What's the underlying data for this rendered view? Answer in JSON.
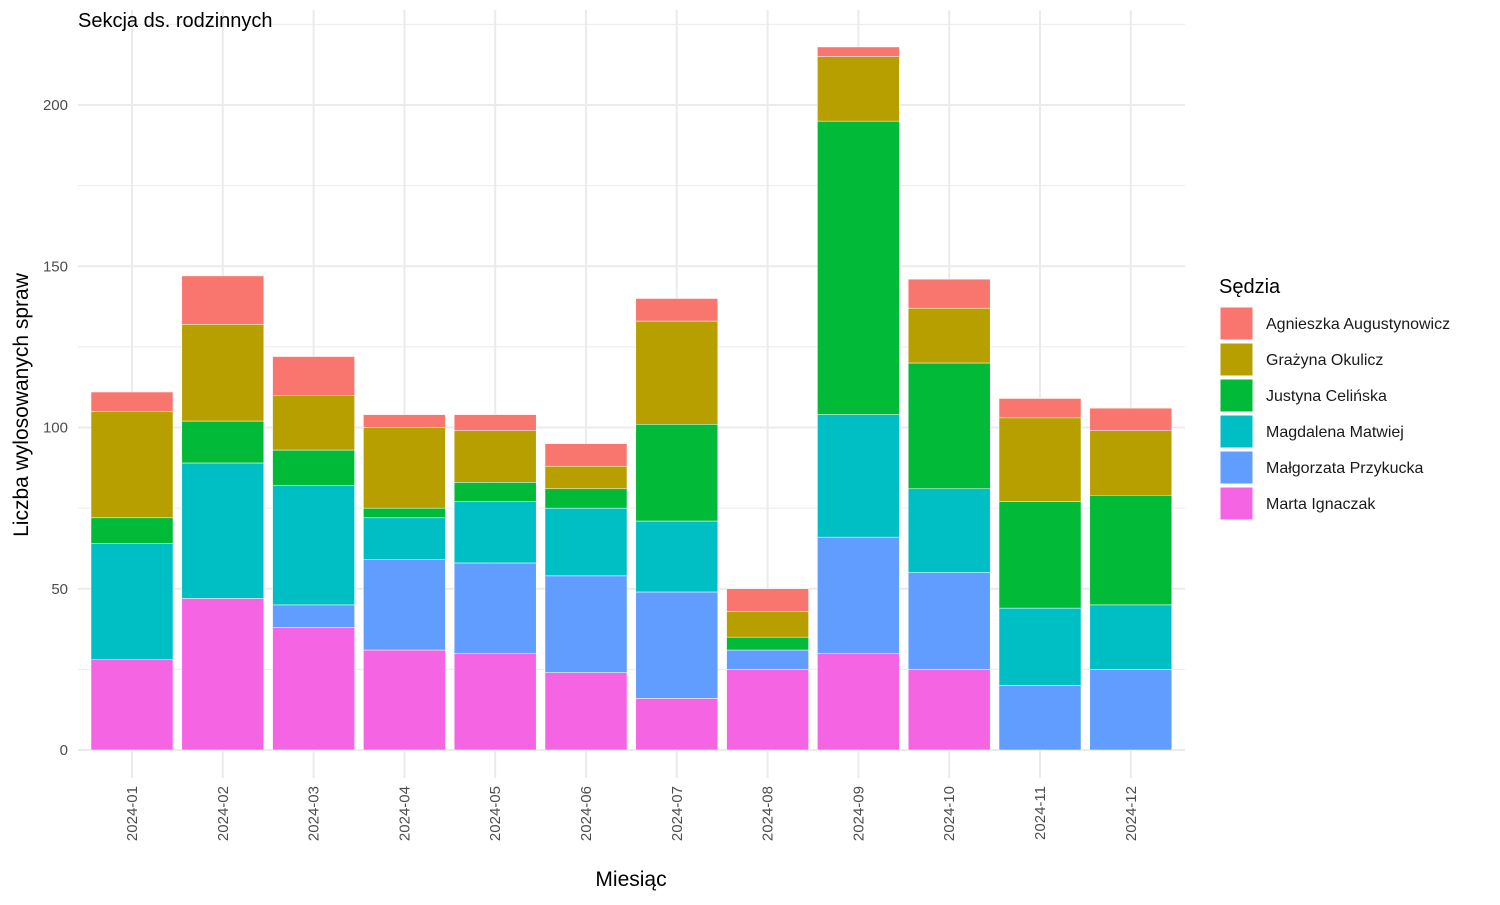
{
  "chart_data": {
    "type": "bar",
    "stacked": true,
    "title": "Sekcja ds. rodzinnych",
    "xlabel": "Miesiąc",
    "ylabel": "Liczba wylosowanych spraw",
    "ylim": [
      0,
      225
    ],
    "y_ticks": [
      0,
      50,
      100,
      150,
      200
    ],
    "grid": true,
    "legend_position": "right",
    "legend_title": "Sędzia",
    "categories": [
      "2024-01",
      "2024-02",
      "2024-03",
      "2024-04",
      "2024-05",
      "2024-06",
      "2024-07",
      "2024-08",
      "2024-09",
      "2024-10",
      "2024-11",
      "2024-12"
    ],
    "series": [
      {
        "name": "Marta Ignaczak",
        "color": "#F564E3",
        "values": [
          28,
          47,
          38,
          31,
          30,
          24,
          16,
          25,
          30,
          25,
          0,
          0
        ]
      },
      {
        "name": "Małgorzata Przykucka",
        "color": "#619CFF",
        "values": [
          0,
          0,
          7,
          28,
          28,
          30,
          33,
          6,
          36,
          30,
          20,
          25
        ]
      },
      {
        "name": "Magdalena Matwiej",
        "color": "#00BFC4",
        "values": [
          36,
          42,
          37,
          13,
          19,
          21,
          22,
          0,
          38,
          26,
          24,
          20
        ]
      },
      {
        "name": "Justyna Celińska",
        "color": "#00BA38",
        "values": [
          8,
          13,
          11,
          3,
          6,
          6,
          30,
          4,
          91,
          39,
          33,
          34
        ]
      },
      {
        "name": "Grażyna Okulicz",
        "color": "#B79F00",
        "values": [
          33,
          30,
          17,
          25,
          16,
          7,
          32,
          8,
          20,
          17,
          26,
          20
        ]
      },
      {
        "name": "Agnieszka Augustynowicz",
        "color": "#F8766D",
        "values": [
          6,
          15,
          12,
          4,
          5,
          7,
          7,
          7,
          3,
          9,
          6,
          7
        ]
      }
    ],
    "legend_order": [
      "Agnieszka Augustynowicz",
      "Grażyna Okulicz",
      "Justyna Celińska",
      "Magdalena Matwiej",
      "Małgorzata Przykucka",
      "Marta Ignaczak"
    ]
  }
}
